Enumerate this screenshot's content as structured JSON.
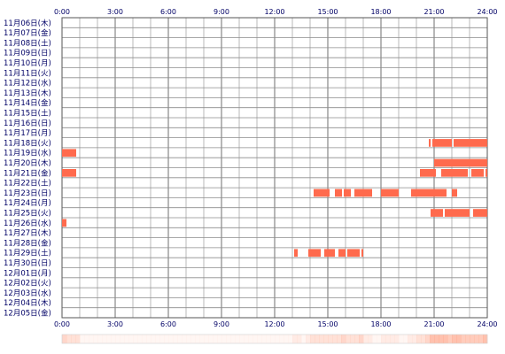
{
  "chart_data": {
    "type": "timeline",
    "x_unit": "hour",
    "x_range": [
      0,
      24
    ],
    "x_ticks": [
      "0:00",
      "3:00",
      "6:00",
      "9:00",
      "12:00",
      "15:00",
      "18:00",
      "21:00",
      "24:00"
    ],
    "grid": true,
    "bar_color": "#ff6a4d",
    "rows": [
      {
        "label": "11月06日(木)",
        "segments": []
      },
      {
        "label": "11月07日(金)",
        "segments": []
      },
      {
        "label": "11月08日(土)",
        "segments": []
      },
      {
        "label": "11月09日(日)",
        "segments": []
      },
      {
        "label": "11月10日(月)",
        "segments": []
      },
      {
        "label": "11月11日(火)",
        "segments": []
      },
      {
        "label": "11月12日(水)",
        "segments": []
      },
      {
        "label": "11月13日(木)",
        "segments": []
      },
      {
        "label": "11月14日(金)",
        "segments": []
      },
      {
        "label": "11月15日(土)",
        "segments": []
      },
      {
        "label": "11月16日(日)",
        "segments": []
      },
      {
        "label": "11月17日(月)",
        "segments": []
      },
      {
        "label": "11月18日(火)",
        "segments": [
          [
            20.7,
            20.8
          ],
          [
            20.9,
            22.0
          ],
          [
            22.1,
            24.0
          ]
        ]
      },
      {
        "label": "11月19日(水)",
        "segments": [
          [
            0.0,
            0.8
          ]
        ]
      },
      {
        "label": "11月20日(木)",
        "segments": [
          [
            21.0,
            24.0
          ]
        ]
      },
      {
        "label": "11月21日(金)",
        "segments": [
          [
            0.0,
            0.8
          ],
          [
            20.2,
            21.1
          ],
          [
            21.4,
            22.9
          ],
          [
            23.1,
            23.8
          ],
          [
            23.9,
            24.0
          ]
        ]
      },
      {
        "label": "11月22日(土)",
        "segments": []
      },
      {
        "label": "11月23日(日)",
        "segments": [
          [
            14.2,
            15.1
          ],
          [
            15.4,
            15.8
          ],
          [
            15.9,
            16.3
          ],
          [
            16.5,
            17.5
          ],
          [
            18.0,
            19.0
          ],
          [
            19.7,
            21.7
          ],
          [
            22.0,
            22.3
          ]
        ]
      },
      {
        "label": "11月24日(月)",
        "segments": []
      },
      {
        "label": "11月25日(火)",
        "segments": [
          [
            20.8,
            21.5
          ],
          [
            21.6,
            23.0
          ],
          [
            23.2,
            24.0
          ]
        ]
      },
      {
        "label": "11月26日(水)",
        "segments": [
          [
            0.0,
            0.25
          ]
        ]
      },
      {
        "label": "11月27日(木)",
        "segments": []
      },
      {
        "label": "11月28日(金)",
        "segments": []
      },
      {
        "label": "11月29日(土)",
        "segments": [
          [
            13.1,
            13.3
          ],
          [
            13.9,
            14.6
          ],
          [
            14.8,
            15.4
          ],
          [
            15.6,
            16.0
          ],
          [
            16.1,
            16.8
          ],
          [
            16.9,
            17.0
          ]
        ]
      },
      {
        "label": "11月30日(日)",
        "segments": []
      },
      {
        "label": "12月01日(月)",
        "segments": []
      },
      {
        "label": "12月02日(火)",
        "segments": []
      },
      {
        "label": "12月03日(水)",
        "segments": []
      },
      {
        "label": "12月04日(木)",
        "segments": []
      },
      {
        "label": "12月05日(金)",
        "segments": []
      }
    ]
  }
}
